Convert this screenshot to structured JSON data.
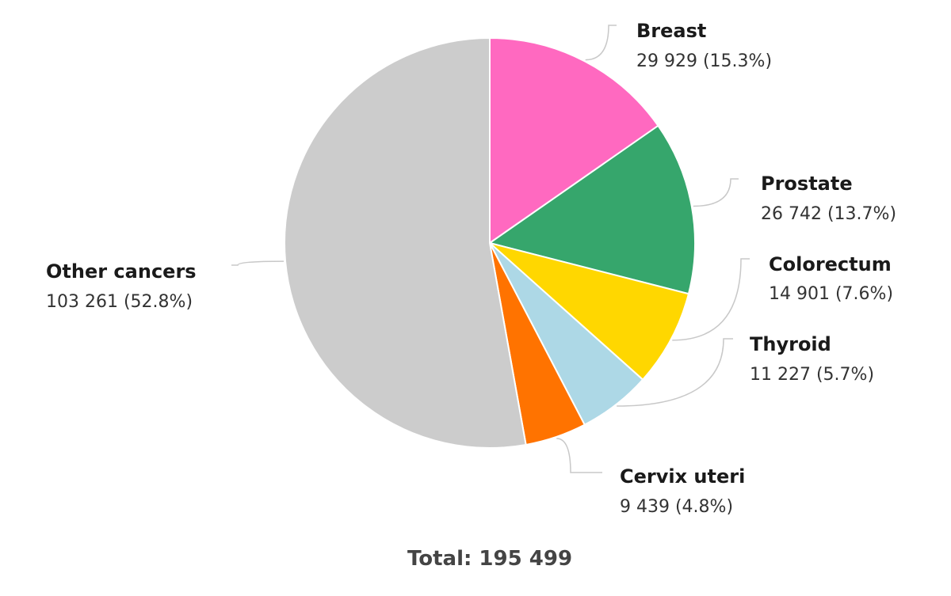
{
  "chart_data": {
    "type": "pie",
    "total_label": "Total: 195 499",
    "slices": [
      {
        "name": "Breast",
        "value": 29929,
        "value_label": "29 929 (15.3%)",
        "color": "#ff69c0"
      },
      {
        "name": "Prostate",
        "value": 26742,
        "value_label": "26 742 (13.7%)",
        "color": "#36a66c"
      },
      {
        "name": "Colorectum",
        "value": 14901,
        "value_label": "14 901 (7.6%)",
        "color": "#ffd700"
      },
      {
        "name": "Thyroid",
        "value": 11227,
        "value_label": "11 227 (5.7%)",
        "color": "#add8e6"
      },
      {
        "name": "Cervix uteri",
        "value": 9439,
        "value_label": "9 439 (4.8%)",
        "color": "#ff7300"
      },
      {
        "name": "Other cancers",
        "value": 103261,
        "value_label": "103 261 (52.8%)",
        "color": "#cccccc"
      }
    ]
  }
}
